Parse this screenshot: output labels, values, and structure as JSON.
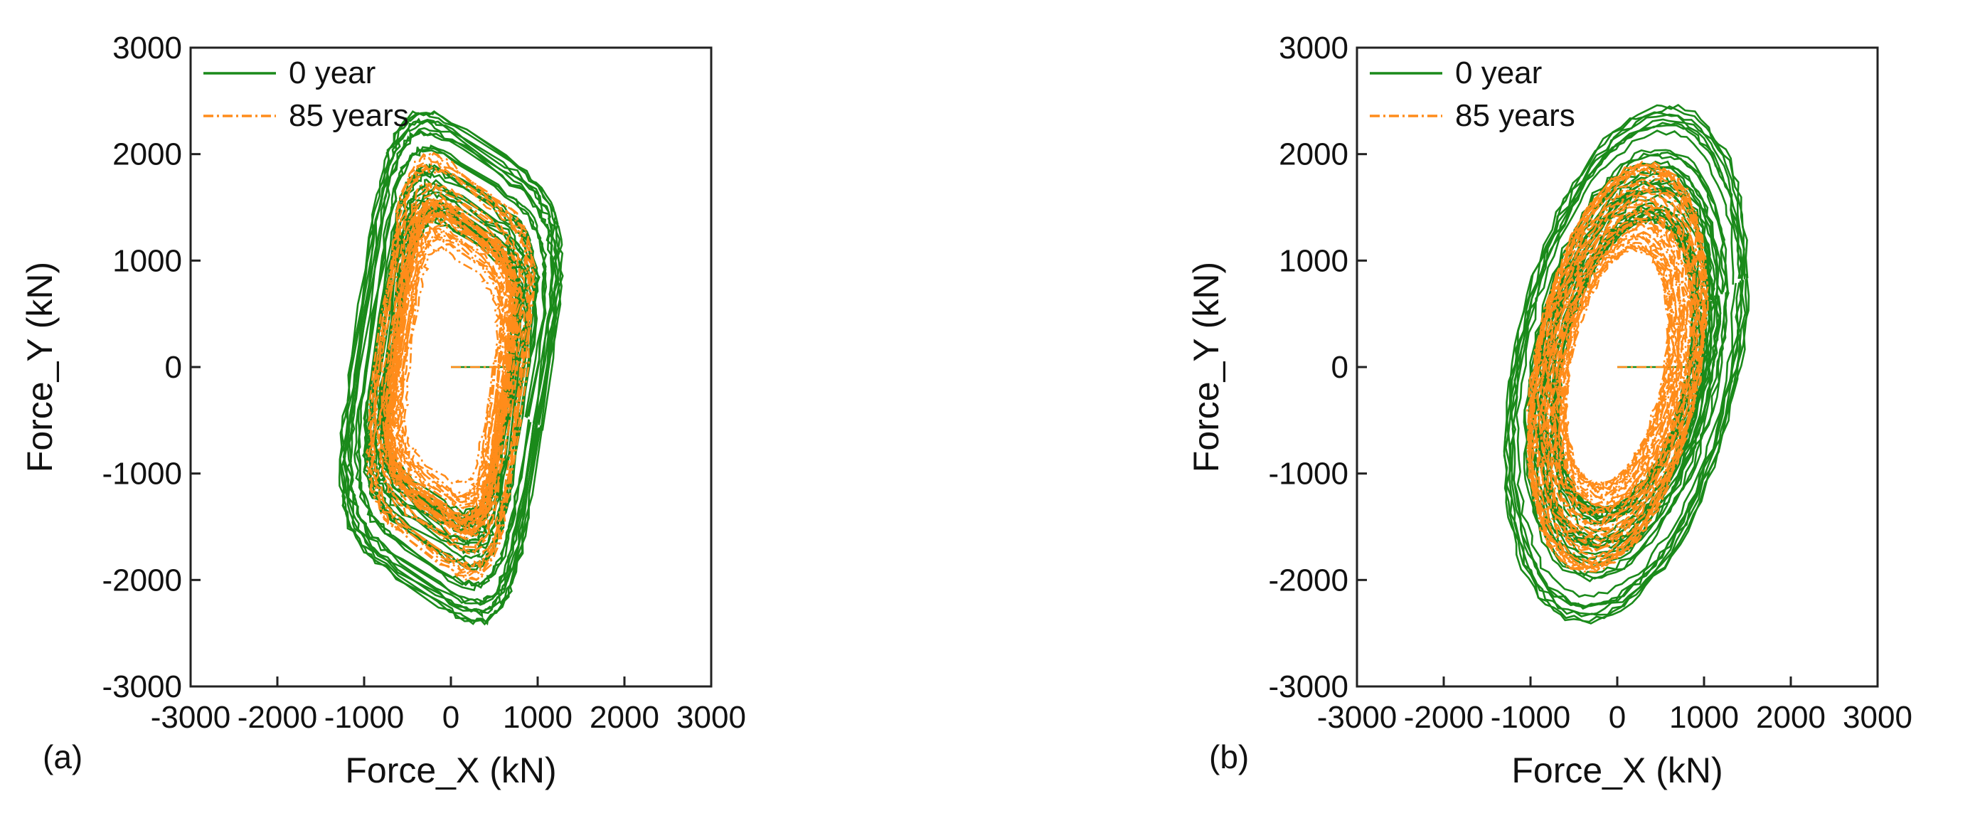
{
  "chart_data": [
    {
      "type": "line",
      "panel_label": "(a)",
      "xlabel": "Force_X (kN)",
      "ylabel": "Force_Y (kN)",
      "xlim": [
        -3000,
        3000
      ],
      "ylim": [
        -3000,
        3000
      ],
      "xticks": [
        "-3000",
        "-2000",
        "-1000",
        "0",
        "1000",
        "2000",
        "3000"
      ],
      "yticks": [
        "-3000",
        "-2000",
        "-1000",
        "0",
        "1000",
        "2000",
        "3000"
      ],
      "legend_position": "top-left",
      "grid": false,
      "series": [
        {
          "name": "0 year",
          "color": "#1a8a1a",
          "style": "solid",
          "shape": "parallelogram-loops",
          "x_range": [
            -1400,
            1400
          ],
          "y_range": [
            -2300,
            2300
          ]
        },
        {
          "name": "85 years",
          "color": "#ff8c1a",
          "style": "dash-dot",
          "shape": "parallelogram-loops",
          "x_range": [
            -1050,
            1050
          ],
          "y_range": [
            -1900,
            1900
          ]
        }
      ]
    },
    {
      "type": "line",
      "panel_label": "(b)",
      "xlabel": "Force_X (kN)",
      "ylabel": "Force_Y (kN)",
      "xlim": [
        -3000,
        3000
      ],
      "ylim": [
        -3000,
        3000
      ],
      "xticks": [
        "-3000",
        "-2000",
        "-1000",
        "0",
        "1000",
        "2000",
        "3000"
      ],
      "yticks": [
        "-3000",
        "-2000",
        "-1000",
        "0",
        "1000",
        "2000",
        "3000"
      ],
      "legend_position": "top-left",
      "grid": false,
      "series": [
        {
          "name": "0 year",
          "color": "#1a8a1a",
          "style": "solid",
          "shape": "elliptical-loops",
          "x_range": [
            -1300,
            1500
          ],
          "y_range": [
            -2450,
            2500
          ]
        },
        {
          "name": "85 years",
          "color": "#ff8c1a",
          "style": "dash-dot",
          "shape": "elliptical-loops",
          "x_range": [
            -1050,
            1050
          ],
          "y_range": [
            -2000,
            2000
          ]
        }
      ]
    }
  ]
}
